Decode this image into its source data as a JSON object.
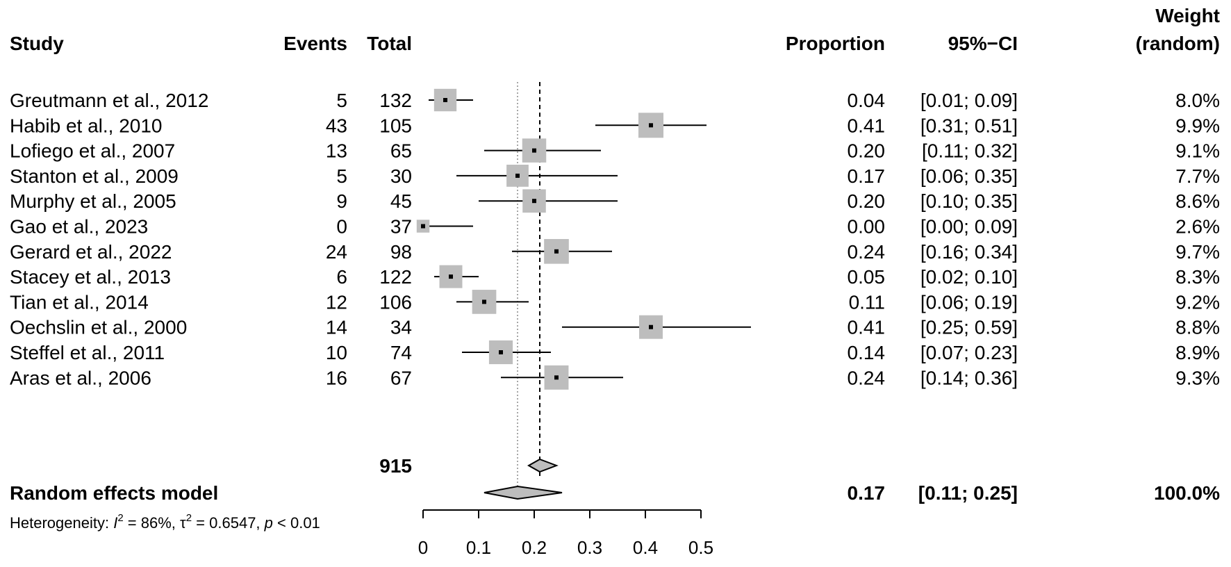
{
  "chart_data": {
    "type": "forest",
    "headers": {
      "study": "Study",
      "events": "Events",
      "total": "Total",
      "proportion": "Proportion",
      "ci": "95%−CI",
      "weight_line1": "Weight",
      "weight_line2": "(random)"
    },
    "studies": [
      {
        "study": "Greutmann et al., 2012",
        "events": "5",
        "total": "132",
        "proportion": 0.04,
        "lower": 0.01,
        "upper": 0.09,
        "prop_label": "0.04",
        "ci_label": "[0.01; 0.09]",
        "weight": 8.0,
        "weight_label": "8.0%"
      },
      {
        "study": "Habib et al., 2010",
        "events": "43",
        "total": "105",
        "proportion": 0.41,
        "lower": 0.31,
        "upper": 0.51,
        "prop_label": "0.41",
        "ci_label": "[0.31; 0.51]",
        "weight": 9.9,
        "weight_label": "9.9%"
      },
      {
        "study": "Lofiego et al., 2007",
        "events": "13",
        "total": "65",
        "proportion": 0.2,
        "lower": 0.11,
        "upper": 0.32,
        "prop_label": "0.20",
        "ci_label": "[0.11; 0.32]",
        "weight": 9.1,
        "weight_label": "9.1%"
      },
      {
        "study": "Stanton et al., 2009",
        "events": "5",
        "total": "30",
        "proportion": 0.17,
        "lower": 0.06,
        "upper": 0.35,
        "prop_label": "0.17",
        "ci_label": "[0.06; 0.35]",
        "weight": 7.7,
        "weight_label": "7.7%"
      },
      {
        "study": "Murphy et al., 2005",
        "events": "9",
        "total": "45",
        "proportion": 0.2,
        "lower": 0.1,
        "upper": 0.35,
        "prop_label": "0.20",
        "ci_label": "[0.10; 0.35]",
        "weight": 8.6,
        "weight_label": "8.6%"
      },
      {
        "study": "Gao et al., 2023",
        "events": "0",
        "total": "37",
        "proportion": 0.0,
        "lower": 0.0,
        "upper": 0.09,
        "prop_label": "0.00",
        "ci_label": "[0.00; 0.09]",
        "weight": 2.6,
        "weight_label": "2.6%"
      },
      {
        "study": "Gerard et al., 2022",
        "events": "24",
        "total": "98",
        "proportion": 0.24,
        "lower": 0.16,
        "upper": 0.34,
        "prop_label": "0.24",
        "ci_label": "[0.16; 0.34]",
        "weight": 9.7,
        "weight_label": "9.7%"
      },
      {
        "study": "Stacey et al., 2013",
        "events": "6",
        "total": "122",
        "proportion": 0.05,
        "lower": 0.02,
        "upper": 0.1,
        "prop_label": "0.05",
        "ci_label": "[0.02; 0.10]",
        "weight": 8.3,
        "weight_label": "8.3%"
      },
      {
        "study": "Tian et al., 2014",
        "events": "12",
        "total": "106",
        "proportion": 0.11,
        "lower": 0.06,
        "upper": 0.19,
        "prop_label": "0.11",
        "ci_label": "[0.06; 0.19]",
        "weight": 9.2,
        "weight_label": "9.2%"
      },
      {
        "study": "Oechslin et al., 2000",
        "events": "14",
        "total": "34",
        "proportion": 0.41,
        "lower": 0.25,
        "upper": 0.59,
        "prop_label": "0.41",
        "ci_label": "[0.25; 0.59]",
        "weight": 8.8,
        "weight_label": "8.8%"
      },
      {
        "study": "Steffel et al., 2011",
        "events": "10",
        "total": "74",
        "proportion": 0.14,
        "lower": 0.07,
        "upper": 0.23,
        "prop_label": "0.14",
        "ci_label": "[0.07; 0.23]",
        "weight": 8.9,
        "weight_label": "8.9%"
      },
      {
        "study": "Aras et al., 2006",
        "events": "16",
        "total": "67",
        "proportion": 0.24,
        "lower": 0.14,
        "upper": 0.36,
        "prop_label": "0.24",
        "ci_label": "[0.14; 0.36]",
        "weight": 9.3,
        "weight_label": "9.3%"
      }
    ],
    "common_effect": {
      "total_label": "915",
      "proportion": 0.21,
      "lower": 0.19,
      "upper": 0.24
    },
    "random_effect": {
      "label": "Random effects model",
      "proportion": 0.17,
      "lower": 0.11,
      "upper": 0.25,
      "prop_label": "0.17",
      "ci_label": "[0.11; 0.25]",
      "weight_label": "100.0%"
    },
    "heterogeneity": {
      "prefix": "Heterogeneity: ",
      "i2_symbol": "I",
      "i2_value": " = 86%, ",
      "tau2_symbol": "τ",
      "tau2_value": " = 0.6547, ",
      "p_symbol": "p",
      "p_value": " < 0.01"
    },
    "x_axis": {
      "min": 0,
      "max": 0.5,
      "ticks": [
        0,
        0.1,
        0.2,
        0.3,
        0.4,
        0.5
      ],
      "tick_labels": [
        "0",
        "0.1",
        "0.2",
        "0.3",
        "0.4",
        "0.5"
      ]
    },
    "reference_lines": {
      "random_dotted": 0.17,
      "common_dashed": 0.21
    }
  }
}
